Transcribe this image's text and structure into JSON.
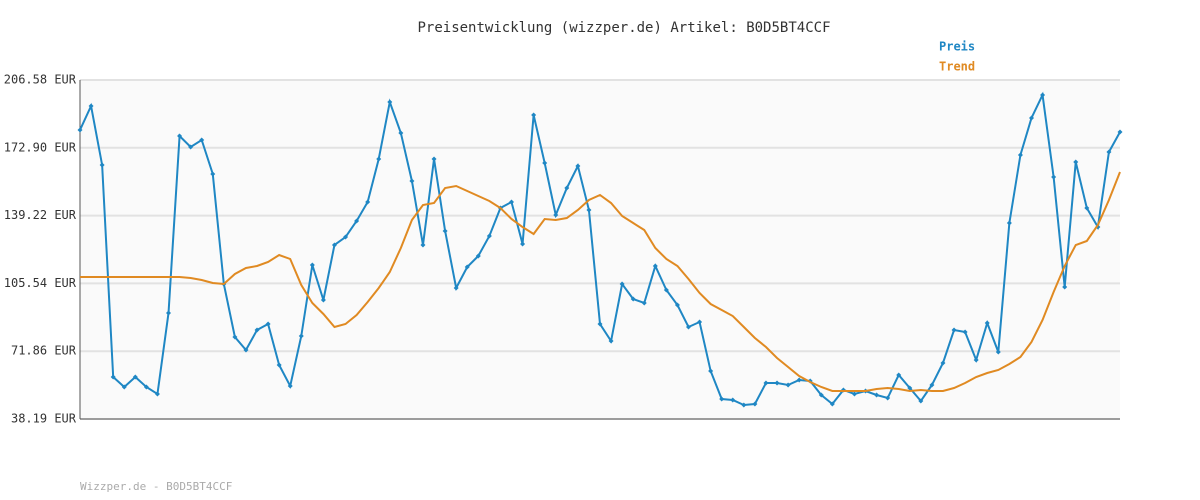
{
  "chart_data": {
    "type": "line",
    "title": "Preisentwicklung (wizzper.de) Artikel: B0D5BT4CCF",
    "footer": "Wizzper.de - B0D5BT4CCF",
    "ylim": [
      38.19,
      206.58
    ],
    "yticks": [
      {
        "value": 38.19,
        "label": "38.19 EUR"
      },
      {
        "value": 71.86,
        "label": "71.86 EUR"
      },
      {
        "value": 105.54,
        "label": "105.54 EUR"
      },
      {
        "value": 139.22,
        "label": "139.22 EUR"
      },
      {
        "value": 172.9,
        "label": "172.90 EUR"
      },
      {
        "value": 206.58,
        "label": "206.58 EUR"
      }
    ],
    "grid": true,
    "series": [
      {
        "name": "Preis",
        "color": "#1f87c4",
        "markers": true,
        "values": [
          181.75,
          193.67,
          164.36,
          59.05,
          54.09,
          59.05,
          54.09,
          50.61,
          90.84,
          178.76,
          173.3,
          176.78,
          159.89,
          105.25,
          78.92,
          72.46,
          82.4,
          85.38,
          65.01,
          54.58,
          79.42,
          114.69,
          97.3,
          124.62,
          128.59,
          136.54,
          145.98,
          167.34,
          195.65,
          180.25,
          156.41,
          124.62,
          167.34,
          131.58,
          103.26,
          113.69,
          119.16,
          129.09,
          143.0,
          145.98,
          125.12,
          189.2,
          165.35,
          139.52,
          152.93,
          163.86,
          142.01,
          85.38,
          76.93,
          105.25,
          97.8,
          95.81,
          114.19,
          102.27,
          94.82,
          83.89,
          86.37,
          62.03,
          48.12,
          47.63,
          45.14,
          45.64,
          56.07,
          56.07,
          55.08,
          57.56,
          57.07,
          50.11,
          45.64,
          52.6,
          50.61,
          52.1,
          50.11,
          48.62,
          60.05,
          53.59,
          47.13,
          55.08,
          66.01,
          82.4,
          81.41,
          67.5,
          85.88,
          71.47,
          135.55,
          169.33,
          187.71,
          199.13,
          158.4,
          103.76,
          165.85,
          143.0,
          133.56,
          170.82,
          180.75
        ]
      },
      {
        "name": "Trend",
        "color": "#e08a22",
        "markers": false,
        "values": [
          108.73,
          108.73,
          108.73,
          108.73,
          108.73,
          108.73,
          108.73,
          108.73,
          108.73,
          108.73,
          108.23,
          107.24,
          105.75,
          105.25,
          110.22,
          113.2,
          114.19,
          116.18,
          119.65,
          117.67,
          104.75,
          95.81,
          90.35,
          83.89,
          85.38,
          89.85,
          96.31,
          103.26,
          111.21,
          123.13,
          137.04,
          144.49,
          145.48,
          152.93,
          153.93,
          151.44,
          148.96,
          146.48,
          143.0,
          137.54,
          133.56,
          130.09,
          137.54,
          137.04,
          138.03,
          142.01,
          146.97,
          149.46,
          145.48,
          139.03,
          135.55,
          132.07,
          123.13,
          117.67,
          114.19,
          107.73,
          100.78,
          95.31,
          92.33,
          89.35,
          83.89,
          78.43,
          73.95,
          68.49,
          64.02,
          59.55,
          56.57,
          54.09,
          52.1,
          52.1,
          52.1,
          52.1,
          53.09,
          53.59,
          53.09,
          52.1,
          52.6,
          52.1,
          52.1,
          53.59,
          56.07,
          59.05,
          61.04,
          62.53,
          65.51,
          68.99,
          76.44,
          87.37,
          101.27,
          114.19,
          124.62,
          126.61,
          134.56,
          146.97,
          160.88
        ]
      }
    ]
  }
}
